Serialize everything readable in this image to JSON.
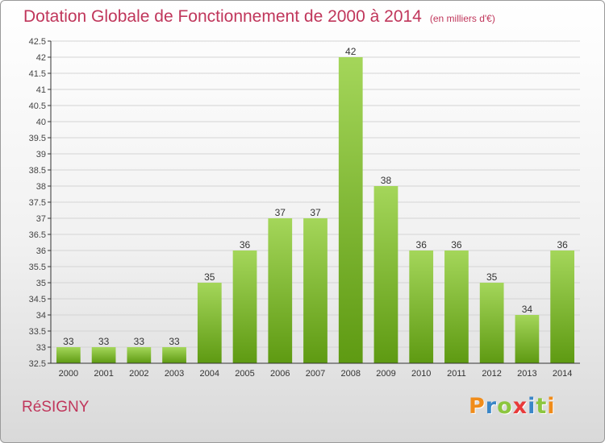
{
  "header": {
    "title": "Dotation Globale de Fonctionnement de 2000 à 2014",
    "unit": "(en milliers d'€)"
  },
  "footer": {
    "commune": "RéSIGNY",
    "logo": "Proxiti"
  },
  "colors": {
    "title": "#c0365b",
    "bar_top": "#a4d65a",
    "bar_bottom": "#5e9a12",
    "grid": "#d4d4d4",
    "axis": "#333333",
    "logo_letters": [
      "#f08c1a",
      "#3a86c8",
      "#8cc63f",
      "#e83a3a",
      "#3a86c8",
      "#8cc63f",
      "#f08c1a"
    ]
  },
  "chart_data": {
    "type": "bar",
    "title": "Dotation Globale de Fonctionnement de 2000 à 2014",
    "subtitle": "(en milliers d'€)",
    "xlabel": "",
    "ylabel": "",
    "ylim": [
      32.5,
      42.5
    ],
    "ytick_step": 0.5,
    "grid": true,
    "categories": [
      "2000",
      "2001",
      "2002",
      "2003",
      "2004",
      "2005",
      "2006",
      "2007",
      "2008",
      "2009",
      "2010",
      "2011",
      "2012",
      "2013",
      "2014"
    ],
    "values": [
      33,
      33,
      33,
      33,
      35,
      36,
      37,
      37,
      42,
      38,
      36,
      36,
      35,
      34,
      36
    ],
    "yticks": [
      "32.5",
      "33",
      "33.5",
      "34",
      "34.5",
      "35",
      "35.5",
      "36",
      "36.5",
      "37",
      "37.5",
      "38",
      "38.5",
      "39",
      "39.5",
      "40",
      "40.5",
      "41",
      "41.5",
      "42",
      "42.5"
    ]
  }
}
